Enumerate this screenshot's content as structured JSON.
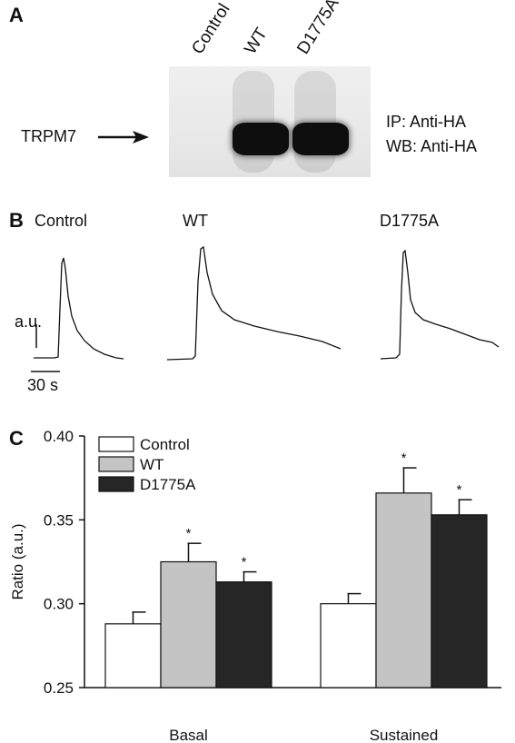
{
  "panel_a": {
    "letter": "A",
    "lanes": [
      "Control",
      "WT",
      "D1775A"
    ],
    "protein_label": "TRPM7",
    "ip_label": "IP: Anti-HA",
    "wb_label": "WB: Anti-HA"
  },
  "panel_b": {
    "letter": "B",
    "traces": [
      "Control",
      "WT",
      "D1775A"
    ],
    "y_scale_label": "a.u.",
    "x_scale_label": "30 s"
  },
  "panel_c": {
    "letter": "C"
  },
  "chart_data": {
    "type": "bar",
    "categories": [
      "Basal",
      "Sustained"
    ],
    "series": [
      {
        "name": "Control",
        "values": [
          0.288,
          0.3
        ],
        "errors": [
          0.007,
          0.006
        ],
        "color": "#ffffff",
        "significant": [
          false,
          false
        ]
      },
      {
        "name": "WT",
        "values": [
          0.325,
          0.366
        ],
        "errors": [
          0.011,
          0.015
        ],
        "color": "#c4c4c4",
        "significant": [
          true,
          true
        ]
      },
      {
        "name": "D1775A",
        "values": [
          0.313,
          0.353
        ],
        "errors": [
          0.006,
          0.009
        ],
        "color": "#262626",
        "significant": [
          true,
          true
        ]
      }
    ],
    "ylabel": "Ratio (a.u.)",
    "ylim": [
      0.25,
      0.4
    ],
    "yticks": [
      "0.25",
      "0.30",
      "0.35",
      "0.40"
    ],
    "significance_marker": "*",
    "legend_position": "top-left",
    "grid": false
  }
}
